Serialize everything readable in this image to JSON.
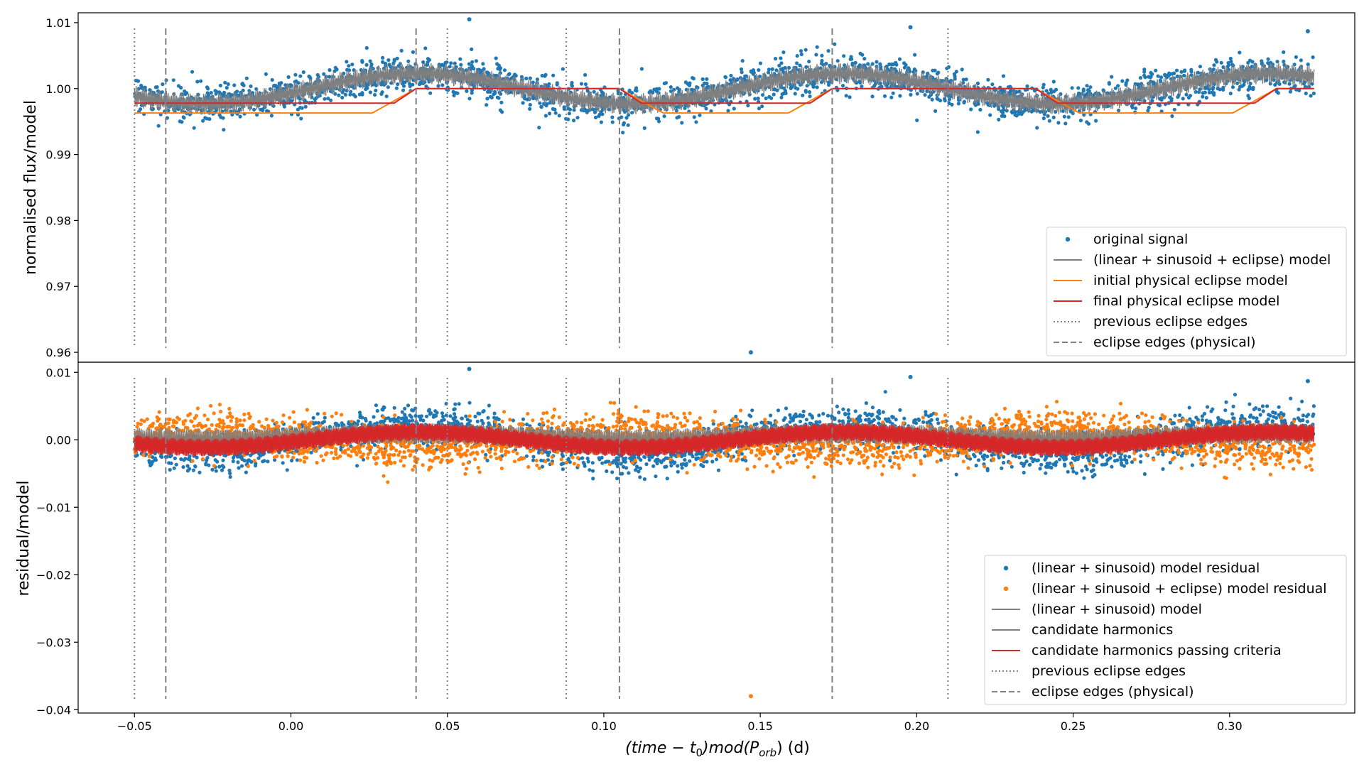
{
  "chart_data": [
    {
      "type": "scatter",
      "panel": "top",
      "ylabel": "normalised flux/model",
      "xlim": [
        -0.068,
        0.34
      ],
      "ylim": [
        0.9585,
        1.0115
      ],
      "yticks": [
        0.96,
        0.97,
        0.98,
        0.99,
        1.0,
        1.01
      ],
      "ytick_labels": [
        "0.96",
        "0.97",
        "0.98",
        "0.99",
        "1.00",
        "1.01"
      ],
      "x_range": [
        -0.05,
        0.327
      ],
      "outliers": [
        {
          "x": 0.147,
          "y": 0.96
        },
        {
          "x": 0.057,
          "y": 1.0105
        },
        {
          "x": 0.198,
          "y": 1.0093
        },
        {
          "x": 0.325,
          "y": 1.0087
        }
      ],
      "series": [
        {
          "name": "original signal",
          "kind": "scatter",
          "color": "#1f77b4"
        },
        {
          "name": "(linear + sinusoid + eclipse) model",
          "kind": "line",
          "color": "#7f7f7f"
        },
        {
          "name": "initial physical eclipse model",
          "kind": "line",
          "color": "#ff7f0e",
          "depth": 0.9963
        },
        {
          "name": "final physical eclipse model",
          "kind": "line",
          "color": "#d62728",
          "depth": 0.9978
        },
        {
          "name": "previous eclipse edges",
          "kind": "vline-dotted",
          "color": "#7f7f7f",
          "x": [
            -0.05,
            0.05,
            0.088,
            0.21
          ]
        },
        {
          "name": "eclipse edges (physical)",
          "kind": "vline-dashed",
          "color": "#7f7f7f",
          "x": [
            -0.04,
            0.04,
            0.105,
            0.173
          ]
        }
      ]
    },
    {
      "type": "scatter",
      "panel": "bottom",
      "ylabel": "residual/model",
      "xlabel_prefix": "(time − t",
      "xlabel_sub0": "0",
      "xlabel_mid": ")mod(P",
      "xlabel_sub1": "orb",
      "xlabel_suffix": ") (d)",
      "xlim": [
        -0.068,
        0.34
      ],
      "ylim": [
        -0.0405,
        0.0115
      ],
      "yticks": [
        0.01,
        0.0,
        -0.01,
        -0.02,
        -0.03,
        -0.04
      ],
      "ytick_labels": [
        "0.01",
        "0.00",
        "−0.01",
        "−0.02",
        "−0.03",
        "−0.04"
      ],
      "xticks": [
        -0.05,
        0.0,
        0.05,
        0.1,
        0.15,
        0.2,
        0.25,
        0.3
      ],
      "xtick_labels": [
        "−0.05",
        "0.00",
        "0.05",
        "0.10",
        "0.15",
        "0.20",
        "0.25",
        "0.30"
      ],
      "outliers": [
        {
          "x": 0.147,
          "y": -0.038
        },
        {
          "x": 0.057,
          "y": 0.0105
        },
        {
          "x": 0.198,
          "y": 0.0093
        },
        {
          "x": 0.325,
          "y": 0.0087
        }
      ],
      "series": [
        {
          "name": "(linear + sinusoid) model residual",
          "kind": "scatter",
          "color": "#1f77b4"
        },
        {
          "name": "(linear + sinusoid + eclipse) model residual",
          "kind": "scatter",
          "color": "#ff7f0e"
        },
        {
          "name": "(linear + sinusoid) model",
          "kind": "line",
          "color": "#7f7f7f"
        },
        {
          "name": "candidate harmonics",
          "kind": "line",
          "color": "#8c7b70"
        },
        {
          "name": "candidate harmonics passing criteria",
          "kind": "line",
          "color": "#d62728"
        },
        {
          "name": "previous eclipse edges",
          "kind": "vline-dotted",
          "color": "#7f7f7f",
          "x": [
            -0.05,
            0.05,
            0.088,
            0.21
          ]
        },
        {
          "name": "eclipse edges (physical)",
          "kind": "vline-dashed",
          "color": "#7f7f7f",
          "x": [
            -0.04,
            0.04,
            0.105,
            0.173
          ]
        }
      ]
    }
  ]
}
